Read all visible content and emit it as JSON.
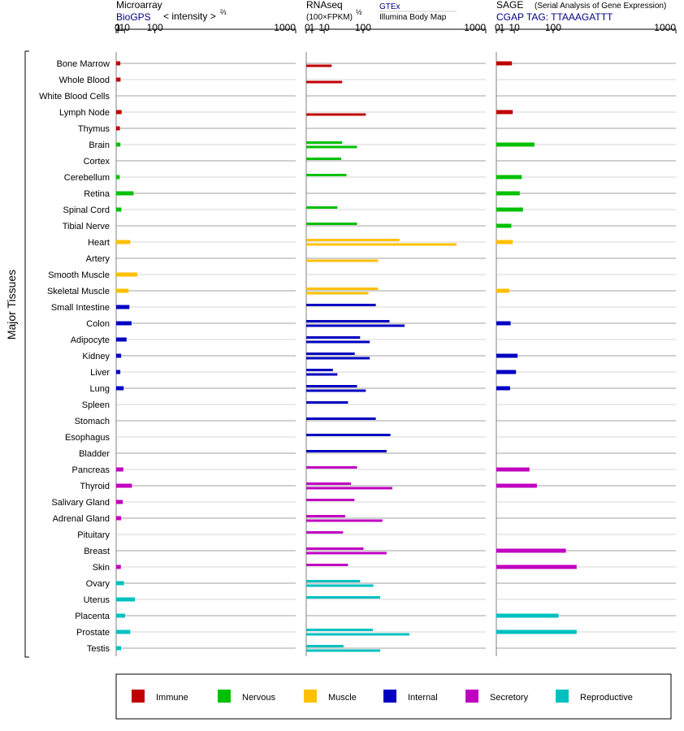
{
  "header": {
    "microarray": {
      "title": "Microarray",
      "source": "BioGPS",
      "unit": "< intensity >",
      "unit_exp": "⅔"
    },
    "rnaseq": {
      "title": "RNAseq",
      "unit": "(100×FPKM)",
      "unit_exp": "½",
      "source1": "GTEx",
      "source2": "Illumina Body Map"
    },
    "sage": {
      "title": "SAGE",
      "subtitle": "(Serial Analysis of Gene Expression)",
      "tag_line": "CGAP TAG: TTAAAGATTT"
    }
  },
  "y_group_label": "Major Tissues",
  "legend": [
    {
      "label": "Immune",
      "color": "#c00000"
    },
    {
      "label": "Nervous",
      "color": "#00c000"
    },
    {
      "label": "Muscle",
      "color": "#ffc000"
    },
    {
      "label": "Internal",
      "color": "#0000c0"
    },
    {
      "label": "Secretory",
      "color": "#c000c0"
    },
    {
      "label": "Reproductive",
      "color": "#00c0c0"
    }
  ],
  "chart_data": {
    "type": "bar",
    "xscale": "power",
    "ticks": [
      "0",
      "1",
      "10",
      "100",
      "1000"
    ],
    "tick_values": [
      0,
      1,
      10,
      100,
      1000
    ],
    "xlim": [
      0,
      1000
    ],
    "categories": [
      "Bone Marrow",
      "Whole Blood",
      "White Blood Cells",
      "Lymph Node",
      "Thymus",
      "Brain",
      "Cortex",
      "Cerebellum",
      "Retina",
      "Spinal Cord",
      "Tibial Nerve",
      "Heart",
      "Artery",
      "Smooth Muscle",
      "Skeletal Muscle",
      "Small Intestine",
      "Colon",
      "Adipocyte",
      "Kidney",
      "Liver",
      "Lung",
      "Spleen",
      "Stomach",
      "Esophagus",
      "Bladder",
      "Pancreas",
      "Thyroid",
      "Salivary Gland",
      "Adrenal Gland",
      "Pituitary",
      "Breast",
      "Skin",
      "Ovary",
      "Uterus",
      "Placenta",
      "Prostate",
      "Testis"
    ],
    "groups": [
      "Immune",
      "Immune",
      "Immune",
      "Immune",
      "Immune",
      "Nervous",
      "Nervous",
      "Nervous",
      "Nervous",
      "Nervous",
      "Nervous",
      "Muscle",
      "Muscle",
      "Muscle",
      "Muscle",
      "Internal",
      "Internal",
      "Internal",
      "Internal",
      "Internal",
      "Internal",
      "Internal",
      "Internal",
      "Internal",
      "Internal",
      "Secretory",
      "Secretory",
      "Secretory",
      "Secretory",
      "Secretory",
      "Secretory",
      "Secretory",
      "Reproductive",
      "Reproductive",
      "Reproductive",
      "Reproductive",
      "Reproductive"
    ],
    "series": [
      {
        "name": "Microarray",
        "values": [
          3.5,
          3.8,
          null,
          5.3,
          3.0,
          3.6,
          null,
          2.8,
          30,
          4.9,
          null,
          22,
          null,
          40,
          18,
          20,
          25,
          14,
          4.6,
          3.5,
          8.5,
          null,
          null,
          null,
          null,
          8,
          26,
          7,
          4.6,
          null,
          null,
          4.2,
          9,
          34,
          11,
          22,
          4.5
        ]
      },
      {
        "name": "RNAseq GTEx",
        "values": [
          null,
          null,
          null,
          null,
          null,
          40,
          38,
          50,
          null,
          30,
          80,
          270,
          null,
          null,
          160,
          150,
          215,
          90,
          73,
          22,
          80,
          54,
          150,
          220,
          200,
          80,
          62,
          72,
          47,
          42,
          102,
          54,
          90,
          170,
          null,
          138,
          43
        ]
      },
      {
        "name": "RNAseq Illumina Body Map",
        "values": [
          20,
          40,
          null,
          110,
          null,
          80,
          null,
          null,
          null,
          null,
          null,
          700,
          160,
          null,
          120,
          null,
          300,
          125,
          125,
          30,
          110,
          null,
          null,
          null,
          null,
          null,
          230,
          null,
          180,
          null,
          200,
          null,
          140,
          null,
          null,
          330,
          170
        ]
      },
      {
        "name": "SAGE",
        "values": [
          7.5,
          null,
          null,
          8.3,
          null,
          45,
          null,
          20,
          17,
          22,
          7.0,
          8.4,
          null,
          null,
          5.2,
          null,
          6.3,
          null,
          14,
          12,
          5.8,
          null,
          null,
          null,
          null,
          34,
          51,
          null,
          null,
          null,
          150,
          200,
          null,
          null,
          120,
          200,
          null
        ]
      }
    ]
  }
}
